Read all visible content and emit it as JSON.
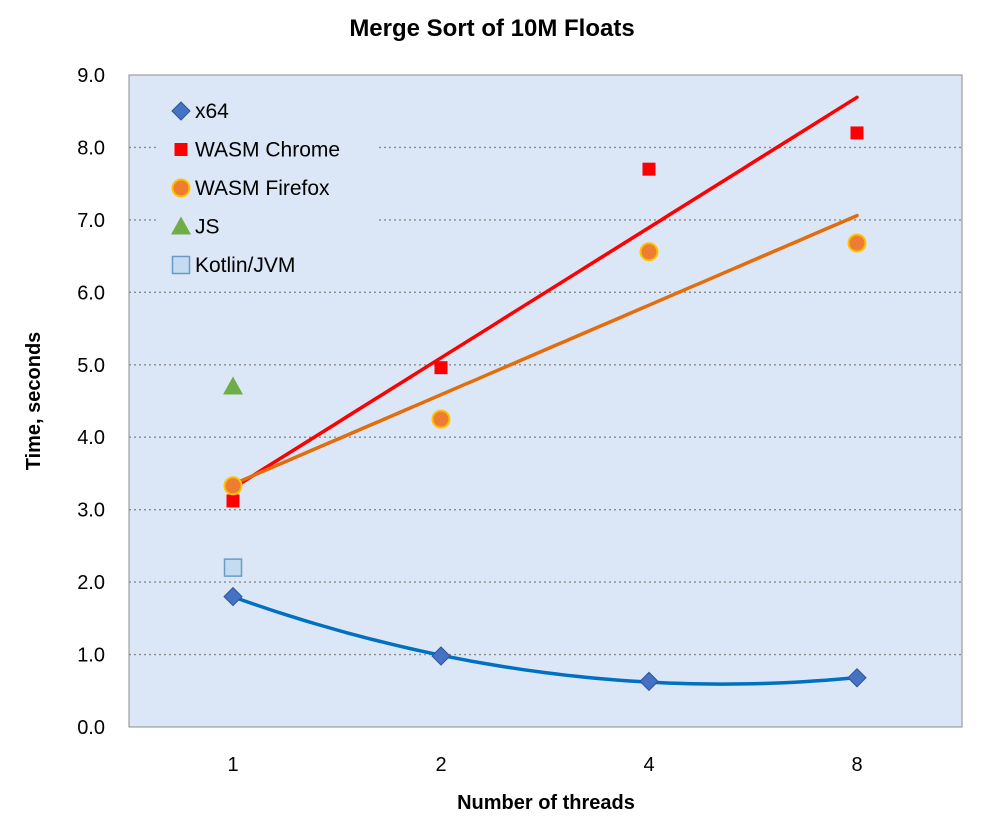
{
  "chart_data": {
    "type": "scatter",
    "title": "Merge Sort of 10M Floats",
    "xlabel": "Number of threads",
    "ylabel": "Time, seconds",
    "categories": [
      "1",
      "2",
      "4",
      "8"
    ],
    "ylim": [
      0,
      9
    ],
    "y_ticks": [
      "0.0",
      "1.0",
      "2.0",
      "3.0",
      "4.0",
      "5.0",
      "6.0",
      "7.0",
      "8.0",
      "9.0"
    ],
    "grid": true,
    "legend_position": "top-left",
    "series": [
      {
        "name": "x64",
        "marker": "diamond",
        "color": "#4472c4",
        "values": [
          1.8,
          0.98,
          0.63,
          0.68
        ],
        "trendline": {
          "kind": "polynomial",
          "color": "#0070c0"
        }
      },
      {
        "name": "WASM Chrome",
        "marker": "square",
        "color": "#ff0000",
        "values": [
          3.12,
          4.96,
          7.7,
          8.2
        ],
        "trendline": {
          "kind": "linear",
          "color": "#ff0000"
        }
      },
      {
        "name": "WASM Firefox",
        "marker": "circle",
        "color": "#ed7d31",
        "values": [
          3.33,
          4.25,
          6.56,
          6.68
        ],
        "trendline": {
          "kind": "linear",
          "color": "#e46c0a"
        }
      },
      {
        "name": "JS",
        "marker": "triangle",
        "color": "#70ad47",
        "values": [
          4.7,
          null,
          null,
          null
        ]
      },
      {
        "name": "Kotlin/JVM",
        "marker": "open-square",
        "color": "#9dc3e6",
        "values": [
          2.2,
          null,
          null,
          null
        ]
      }
    ]
  }
}
